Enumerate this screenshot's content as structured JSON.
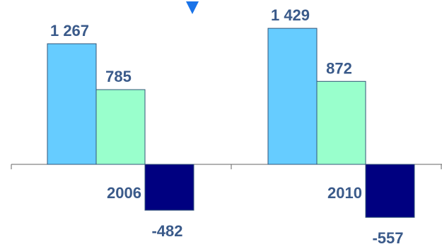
{
  "chart_data": {
    "type": "bar",
    "categories": [
      "2006",
      "2010"
    ],
    "series": [
      {
        "values": [
          1267,
          1429
        ],
        "labels": [
          "1 267",
          "1 429"
        ],
        "color": "#66ccff"
      },
      {
        "values": [
          785,
          872
        ],
        "labels": [
          "785",
          "872"
        ],
        "color": "#99ffcc"
      },
      {
        "values": [
          -482,
          -557
        ],
        "labels": [
          "-482",
          "-557"
        ],
        "color": "#000080"
      }
    ],
    "label_color": "#3a5a8a",
    "axis_color": "#666666",
    "bar_border_color": "#335577",
    "marker_color": "#1a73e8"
  }
}
